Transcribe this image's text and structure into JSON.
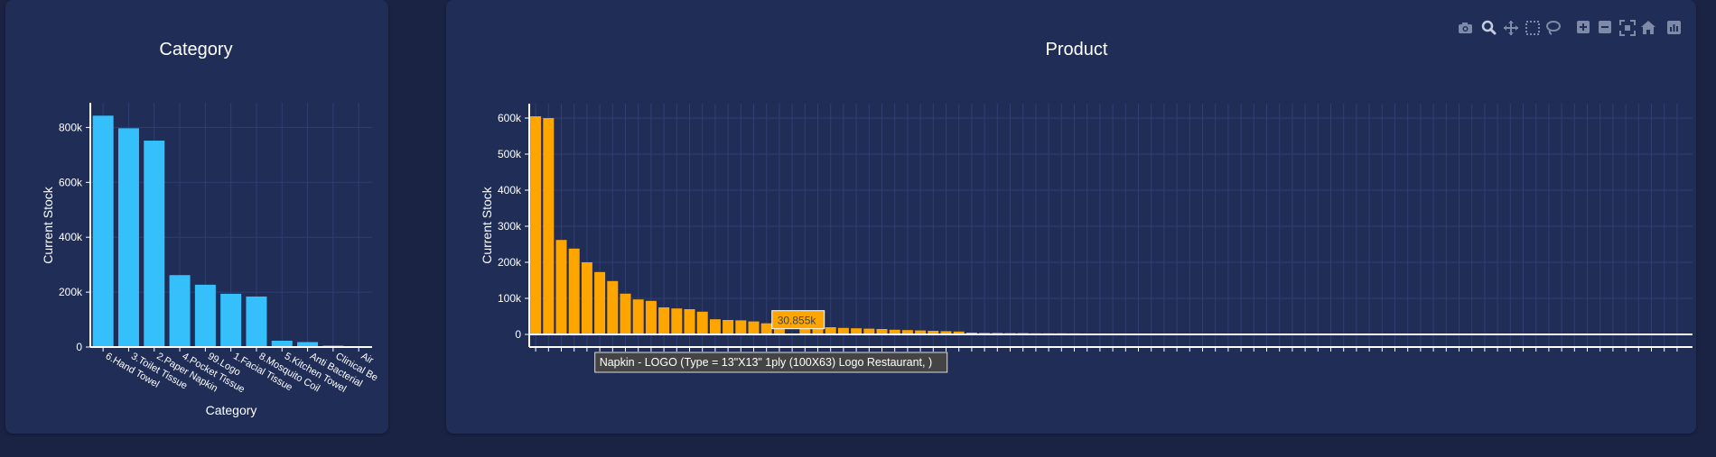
{
  "colors": {
    "background": "#1a2343",
    "panel": "#1f2d57",
    "category_bar": "#36c0fb",
    "product_bar": "#ffa500",
    "grid": "#2f3f72"
  },
  "modebar": {
    "icons": [
      "camera-icon",
      "zoom-icon",
      "pan-icon",
      "box-select-icon",
      "lasso-icon",
      "zoom-in-icon",
      "zoom-out-icon",
      "autoscale-icon",
      "home-icon",
      "plotly-logo-icon"
    ],
    "active": "zoom-icon"
  },
  "chart_data": [
    {
      "type": "bar",
      "title": "Category",
      "xlabel": "Category",
      "ylabel": "Current Stock",
      "ylim": [
        0,
        890000
      ],
      "yticks": [
        0,
        200000,
        400000,
        600000,
        800000
      ],
      "ytick_labels": [
        "0",
        "200k",
        "400k",
        "600k",
        "800k"
      ],
      "grid": true,
      "categories": [
        "6.Hand Towel",
        "3.Toilet Tissue",
        "2.Paper Napkin",
        "4.Pocket Tissue",
        "99.Logo",
        "1.Facial Tissue",
        "8.Mosquito Coil",
        "5.Kitchen Towel",
        "Anti Bacterial",
        "Clinical Be",
        "Air"
      ],
      "values": [
        843000,
        797000,
        752000,
        262000,
        227000,
        194000,
        184000,
        23000,
        18000,
        5000,
        3000
      ]
    },
    {
      "type": "bar",
      "title": "Product",
      "xlabel": "",
      "ylabel": "Current Stock",
      "ylim": [
        -5000,
        640000
      ],
      "yticks": [
        0,
        100000,
        200000,
        300000,
        400000,
        500000,
        600000
      ],
      "ytick_labels": [
        "0",
        "100k",
        "200k",
        "300k",
        "400k",
        "500k",
        "600k"
      ],
      "grid": true,
      "values": [
        605000,
        600000,
        262000,
        238000,
        200000,
        173000,
        148000,
        113000,
        97000,
        93000,
        75000,
        72000,
        70000,
        63000,
        42000,
        40000,
        39000,
        36000,
        30855,
        31000,
        0,
        22000,
        21000,
        20000,
        18000,
        17000,
        16000,
        15000,
        13000,
        12000,
        11000,
        10000,
        9000,
        8000,
        5000,
        4000,
        4000,
        3500,
        3500,
        3000,
        3000,
        3000,
        2800,
        2500,
        2500,
        2200,
        2200,
        2000,
        2000,
        1800,
        1800,
        1700,
        1700,
        1600,
        1500,
        1500,
        1400,
        1400,
        1300,
        1300,
        1200,
        1200,
        1100,
        1000,
        1000,
        900,
        900,
        800,
        800,
        700,
        700,
        600,
        600,
        500,
        500,
        400,
        400,
        300,
        300,
        300,
        200,
        200,
        200,
        150,
        150,
        100,
        100,
        100,
        80,
        80
      ],
      "hover": {
        "bar_index": 18,
        "value_label": "30.855k",
        "category_label": "Napkin - LOGO (Type = 13\"X13\" 1ply (100X63) Logo Restaurant, )"
      }
    }
  ]
}
